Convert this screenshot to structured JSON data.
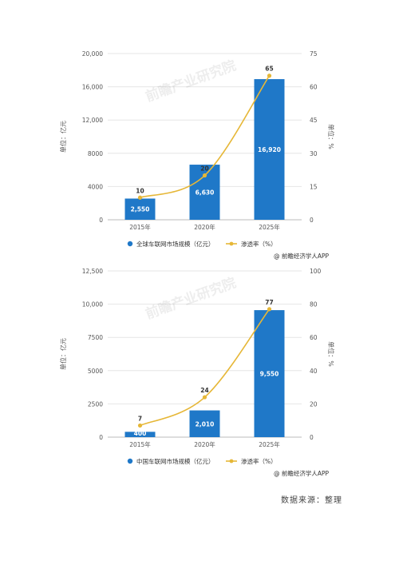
{
  "charts": [
    {
      "type": "bar+line",
      "categories": [
        "2015年",
        "2020年",
        "2025年"
      ],
      "bar_series": {
        "name": "全球车联网市场规模（亿元）",
        "values": [
          2550,
          6630,
          16920
        ],
        "labels": [
          "2,550",
          "6,630",
          "16,920"
        ],
        "color": "#1f78c8"
      },
      "line_series": {
        "name": "渗透率（%）",
        "values": [
          10,
          20,
          65
        ],
        "labels": [
          "10",
          "20",
          "65"
        ],
        "color": "#e6b737"
      },
      "ylabel_left": "单位：亿元",
      "ylabel_right": "单位：%",
      "left_ticks": [
        {
          "value": 0,
          "label": "0"
        },
        {
          "value": 4000,
          "label": "4000"
        },
        {
          "value": 8000,
          "label": "8000"
        },
        {
          "value": 12000,
          "label": "12,000"
        },
        {
          "value": 16000,
          "label": "16,000"
        },
        {
          "value": 20000,
          "label": "20,000"
        }
      ],
      "right_ticks": [
        {
          "value": 0,
          "label": "0"
        },
        {
          "value": 15,
          "label": "15"
        },
        {
          "value": 30,
          "label": "30"
        },
        {
          "value": 45,
          "label": "45"
        },
        {
          "value": 60,
          "label": "60"
        },
        {
          "value": 75,
          "label": "75"
        }
      ],
      "ylim_left": [
        0,
        20000
      ],
      "ylim_right": [
        0,
        75
      ],
      "watermark": "前瞻产业研究院",
      "credit": "@ 前瞻经济学人APP"
    },
    {
      "type": "bar+line",
      "categories": [
        "2015年",
        "2020年",
        "2025年"
      ],
      "bar_series": {
        "name": "中国车联网市场规模（亿元）",
        "values": [
          400,
          2010,
          9550
        ],
        "labels": [
          "400",
          "2,010",
          "9,550"
        ],
        "color": "#1f78c8"
      },
      "line_series": {
        "name": "渗透率（%）",
        "values": [
          7,
          24,
          77
        ],
        "labels": [
          "7",
          "24",
          "77"
        ],
        "color": "#e6b737"
      },
      "ylabel_left": "单位：亿元",
      "ylabel_right": "单位：%",
      "left_ticks": [
        {
          "value": 0,
          "label": "0"
        },
        {
          "value": 2500,
          "label": "2500"
        },
        {
          "value": 5000,
          "label": "5000"
        },
        {
          "value": 7500,
          "label": "7500"
        },
        {
          "value": 10000,
          "label": "10,000"
        },
        {
          "value": 12500,
          "label": "12,500"
        }
      ],
      "right_ticks": [
        {
          "value": 0,
          "label": "0"
        },
        {
          "value": 20,
          "label": "20"
        },
        {
          "value": 40,
          "label": "40"
        },
        {
          "value": 60,
          "label": "60"
        },
        {
          "value": 80,
          "label": "80"
        },
        {
          "value": 100,
          "label": "100"
        }
      ],
      "ylim_left": [
        0,
        12500
      ],
      "ylim_right": [
        0,
        100
      ],
      "watermark": "前瞻产业研究院",
      "credit": "@ 前瞻经济学人APP"
    }
  ],
  "chart_data": [
    {
      "type": "bar",
      "categories": [
        "2015年",
        "2020年",
        "2025年"
      ],
      "series": [
        {
          "name": "全球车联网市场规模（亿元）",
          "type": "bar",
          "axis": "left",
          "values": [
            2550,
            6630,
            16920
          ]
        },
        {
          "name": "渗透率（%）",
          "type": "line",
          "axis": "right",
          "values": [
            10,
            20,
            65
          ]
        }
      ],
      "ylabel": "单位：亿元",
      "ylabel_right": "单位：%",
      "ylim": [
        0,
        20000
      ],
      "ylim_right": [
        0,
        75
      ],
      "legend": "bottom",
      "grid": true
    },
    {
      "type": "bar",
      "categories": [
        "2015年",
        "2020年",
        "2025年"
      ],
      "series": [
        {
          "name": "中国车联网市场规模（亿元）",
          "type": "bar",
          "axis": "left",
          "values": [
            400,
            2010,
            9550
          ]
        },
        {
          "name": "渗透率（%）",
          "type": "line",
          "axis": "right",
          "values": [
            7,
            24,
            77
          ]
        }
      ],
      "ylabel": "单位：亿元",
      "ylabel_right": "单位：%",
      "ylim": [
        0,
        12500
      ],
      "ylim_right": [
        0,
        100
      ],
      "legend": "bottom",
      "grid": true
    }
  ],
  "source_note": "数据来源：整理"
}
